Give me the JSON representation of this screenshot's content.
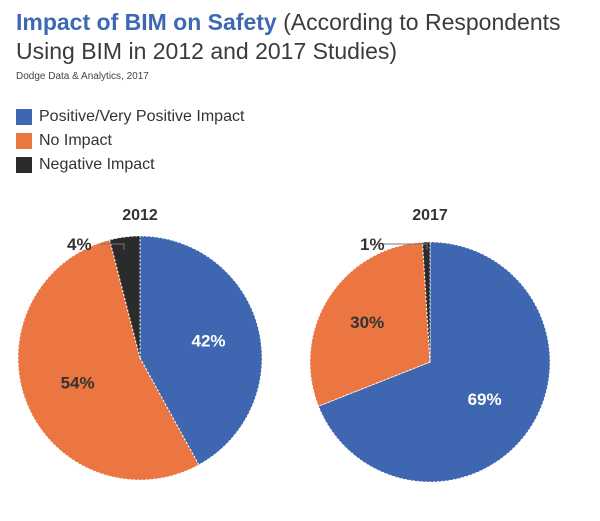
{
  "title": {
    "highlight": "Impact of BIM on Safety",
    "rest": " (According to Respondents Using BIM in 2012 and 2017 Studies)"
  },
  "source": "Dodge Data & Analytics, 2017",
  "legend": [
    {
      "label": "Positive/Very Positive Impact",
      "color": "#3f67b1"
    },
    {
      "label": "No Impact",
      "color": "#ec7642"
    },
    {
      "label": "Negative Impact",
      "color": "#2b2b2b"
    }
  ],
  "chart_data": [
    {
      "type": "pie",
      "title": "2012",
      "slices": [
        {
          "label": "Positive/Very Positive Impact",
          "value": 42,
          "display": "42%",
          "color": "#3f67b1"
        },
        {
          "label": "No Impact",
          "value": 54,
          "display": "54%",
          "color": "#ec7642"
        },
        {
          "label": "Negative Impact",
          "value": 4,
          "display": "4%",
          "color": "#2b2b2b"
        }
      ]
    },
    {
      "type": "pie",
      "title": "2017",
      "slices": [
        {
          "label": "Positive/Very Positive Impact",
          "value": 69,
          "display": "69%",
          "color": "#3f67b1"
        },
        {
          "label": "No Impact",
          "value": 30,
          "display": "30%",
          "color": "#ec7642"
        },
        {
          "label": "Negative Impact",
          "value": 1,
          "display": "1%",
          "color": "#2b2b2b"
        }
      ]
    }
  ]
}
